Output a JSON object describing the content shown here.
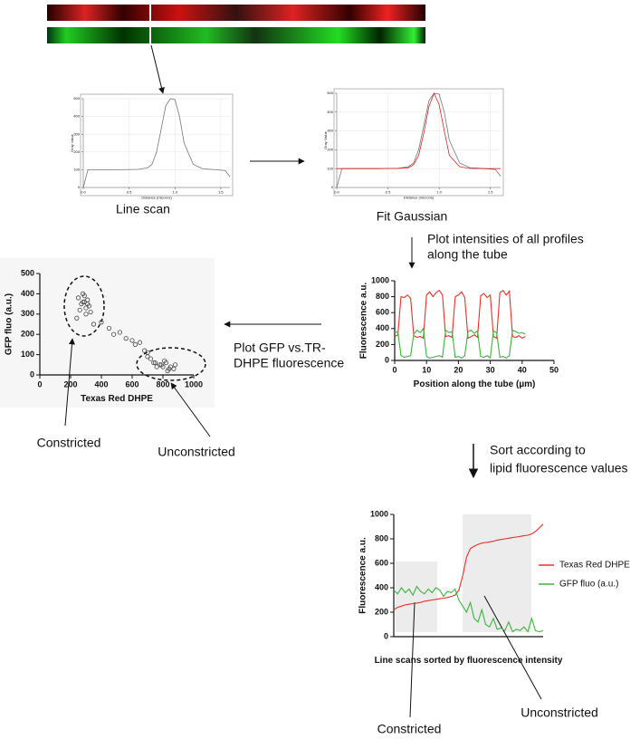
{
  "labels": {
    "line_scan": "Line scan",
    "fit_gaussian": "Fit Gaussian",
    "plot_profiles": [
      "Plot intensities of all profiles",
      "along the tube"
    ],
    "plot_gfp": [
      "Plot  GFP vs.TR-",
      "DHPE fluorescence"
    ],
    "sort": [
      "Sort according to",
      "lipid fluorescence values"
    ],
    "scatter_constricted": "Constricted",
    "scatter_unconstricted": "Unconstricted",
    "sorted_constricted": "Constricted",
    "sorted_unconstricted": "Unconstricted"
  },
  "chart_data": [
    {
      "type": "line",
      "xlabel": "Distance (microns)",
      "ylabel": "Gray Value",
      "x": [
        0,
        0.05,
        0.2,
        0.4,
        0.6,
        0.7,
        0.75,
        0.8,
        0.85,
        0.9,
        0.95,
        1.0,
        1.05,
        1.1,
        1.2,
        1.3,
        1.45,
        1.55,
        1.6
      ],
      "series": [
        {
          "color": "#777777",
          "values": [
            0,
            100,
            100,
            100,
            102,
            110,
            130,
            200,
            330,
            460,
            500,
            495,
            400,
            250,
            130,
            105,
            100,
            95,
            60
          ]
        }
      ],
      "xlim": [
        0,
        1.6
      ],
      "ylim": [
        0,
        500
      ],
      "xticks": [
        {
          "value": 0,
          "label": "0.0"
        },
        {
          "value": 0.5,
          "label": "0.5"
        },
        {
          "value": 1,
          "label": "1.0"
        },
        {
          "value": 1.5,
          "label": "1.5"
        }
      ],
      "yticks": [
        0,
        100,
        200,
        300,
        400,
        500
      ],
      "grid": true
    },
    {
      "type": "line",
      "xlabel": "Distance (microns)",
      "ylabel": "Gray Value",
      "x": [
        0,
        0.05,
        0.2,
        0.4,
        0.6,
        0.7,
        0.75,
        0.8,
        0.85,
        0.9,
        0.95,
        1.0,
        1.05,
        1.1,
        1.2,
        1.3,
        1.45,
        1.55,
        1.6
      ],
      "series": [
        {
          "color": "#777777",
          "values": [
            0,
            100,
            100,
            100,
            102,
            110,
            130,
            200,
            330,
            460,
            500,
            495,
            400,
            250,
            130,
            105,
            100,
            95,
            60
          ]
        },
        {
          "color": "#e02020",
          "values": [
            100,
            100,
            100,
            100,
            101,
            105,
            120,
            170,
            290,
            430,
            500,
            440,
            300,
            170,
            110,
            101,
            100,
            100,
            100
          ]
        }
      ],
      "xlim": [
        0,
        1.6
      ],
      "ylim": [
        0,
        500
      ],
      "xticks": [
        {
          "value": 0,
          "label": "0.0"
        },
        {
          "value": 0.5,
          "label": "0.5"
        },
        {
          "value": 1,
          "label": "1.0"
        },
        {
          "value": 1.5,
          "label": "1.5"
        }
      ],
      "yticks": [
        0,
        100,
        200,
        300,
        400,
        500
      ],
      "grid": true
    },
    {
      "type": "line",
      "xlabel": "Position along the tube (µm)",
      "ylabel": "Fluorescence a.u.",
      "x": [
        0,
        1,
        2,
        3,
        4,
        5,
        6,
        7,
        8,
        9,
        10,
        11,
        12,
        13,
        14,
        15,
        16,
        17,
        18,
        19,
        20,
        21,
        22,
        23,
        24,
        25,
        26,
        27,
        28,
        29,
        30,
        31,
        32,
        33,
        34,
        35,
        36,
        37,
        38,
        39,
        40,
        41
      ],
      "series": [
        {
          "color": "#e8302a",
          "values": [
            300,
            320,
            800,
            790,
            820,
            780,
            310,
            290,
            300,
            280,
            820,
            860,
            800,
            850,
            880,
            820,
            300,
            310,
            290,
            800,
            820,
            860,
            790,
            280,
            300,
            320,
            290,
            810,
            840,
            790,
            820,
            300,
            280,
            850,
            880,
            820,
            870,
            300,
            290,
            310,
            280,
            300
          ]
        },
        {
          "color": "#3cb43c",
          "values": [
            350,
            360,
            60,
            40,
            50,
            60,
            330,
            380,
            350,
            400,
            50,
            30,
            40,
            50,
            60,
            40,
            380,
            350,
            360,
            40,
            50,
            30,
            60,
            360,
            380,
            340,
            370,
            50,
            40,
            60,
            30,
            370,
            350,
            40,
            50,
            30,
            60,
            380,
            360,
            340,
            350,
            330
          ]
        }
      ],
      "xlim": [
        0,
        50
      ],
      "ylim": [
        0,
        1000
      ],
      "xticks": [
        0,
        10,
        20,
        30,
        40,
        50
      ],
      "yticks": [
        0,
        200,
        400,
        600,
        800,
        1000
      ],
      "grid": false
    },
    {
      "type": "scatter",
      "xlabel": "Texas Red DHPE",
      "ylabel": "GFP fluo (a.u.)",
      "x": [
        250,
        270,
        290,
        300,
        310,
        280,
        260,
        320,
        300,
        280,
        290,
        310,
        240,
        330,
        350,
        400,
        450,
        480,
        520,
        560,
        600,
        620,
        650,
        680,
        700,
        720,
        750,
        780,
        800,
        820,
        840,
        760,
        790,
        810,
        850,
        870,
        740,
        830,
        880,
        700
      ],
      "series": [
        {
          "color": "#444444",
          "values": [
            380,
            350,
            360,
            330,
            370,
            400,
            320,
            340,
            300,
            360,
            390,
            350,
            280,
            310,
            250,
            260,
            230,
            200,
            210,
            180,
            170,
            150,
            160,
            120,
            110,
            80,
            60,
            50,
            40,
            60,
            30,
            40,
            50,
            70,
            40,
            30,
            60,
            20,
            50,
            90
          ]
        }
      ],
      "xlim": [
        0,
        1000
      ],
      "ylim": [
        0,
        500
      ],
      "xticks": [
        0,
        200,
        400,
        600,
        800,
        1000
      ],
      "yticks": [
        0,
        100,
        200,
        300,
        400,
        500
      ],
      "grid": false
    },
    {
      "type": "line",
      "xlabel": "Line scans sorted by fluorescence intensity",
      "ylabel": "Fluorescence a.u.",
      "series": [
        {
          "name": "Texas Red DHPE",
          "color": "#e8302a",
          "values": [
            220,
            240,
            250,
            260,
            265,
            270,
            275,
            280,
            290,
            295,
            300,
            305,
            310,
            315,
            320,
            330,
            340,
            380,
            500,
            650,
            720,
            740,
            755,
            765,
            770,
            775,
            780,
            790,
            795,
            800,
            805,
            810,
            815,
            820,
            825,
            830,
            840,
            860,
            890,
            920
          ]
        },
        {
          "name": "GFP fluo (a.u.)",
          "color": "#3cb43c",
          "values": [
            380,
            350,
            400,
            360,
            390,
            340,
            410,
            370,
            350,
            390,
            360,
            400,
            380,
            330,
            370,
            360,
            390,
            300,
            250,
            200,
            280,
            150,
            120,
            220,
            100,
            80,
            150,
            60,
            70,
            50,
            120,
            40,
            60,
            50,
            80,
            40,
            150,
            50,
            40,
            50
          ]
        }
      ],
      "ylim": [
        0,
        1000
      ],
      "yticks": [
        0,
        200,
        400,
        600,
        800,
        1000
      ],
      "grid": false
    }
  ]
}
